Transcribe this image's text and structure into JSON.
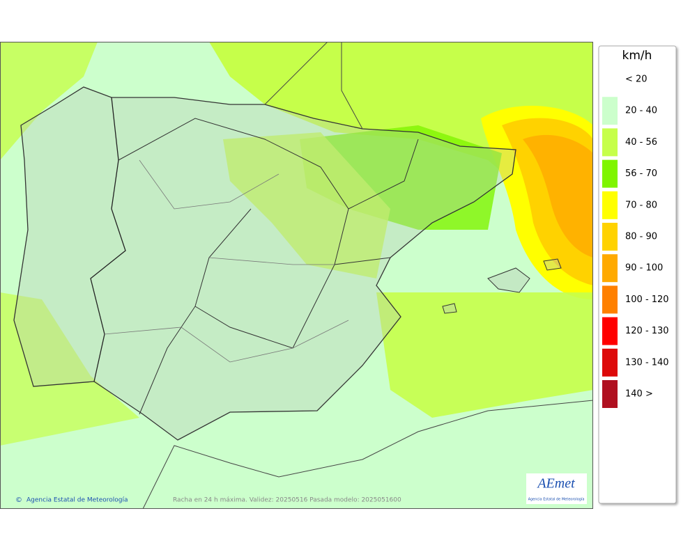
{
  "legend": {
    "title": "km/h",
    "items": [
      {
        "label": "< 20"
      },
      {
        "label": "20 - 40",
        "color": "#ccffcc"
      },
      {
        "label": "40 - 56",
        "color": "#c6ff4a"
      },
      {
        "label": "56 - 70",
        "color": "#7ff500"
      },
      {
        "label": "70 - 80",
        "color": "#ffff00"
      },
      {
        "label": "80 - 90",
        "color": "#ffd200"
      },
      {
        "label": "90 - 100",
        "color": "#ffaa00"
      },
      {
        "label": "100 - 120",
        "color": "#ff8000"
      },
      {
        "label": "120 - 130",
        "color": "#ff0000"
      },
      {
        "label": "130 - 140",
        "color": "#dd0a0a"
      },
      {
        "label": "140 >",
        "color": "#b01020"
      }
    ]
  },
  "map": {
    "copyright": "Agencia Estatal de Meteorología",
    "caption": "Racha en 24 h máxima. Validez: 20250516 Pasada modelo: 2025051600",
    "logo": {
      "name": "AEmet",
      "subtitle": "Agencia Estatal de Meteorología"
    }
  }
}
